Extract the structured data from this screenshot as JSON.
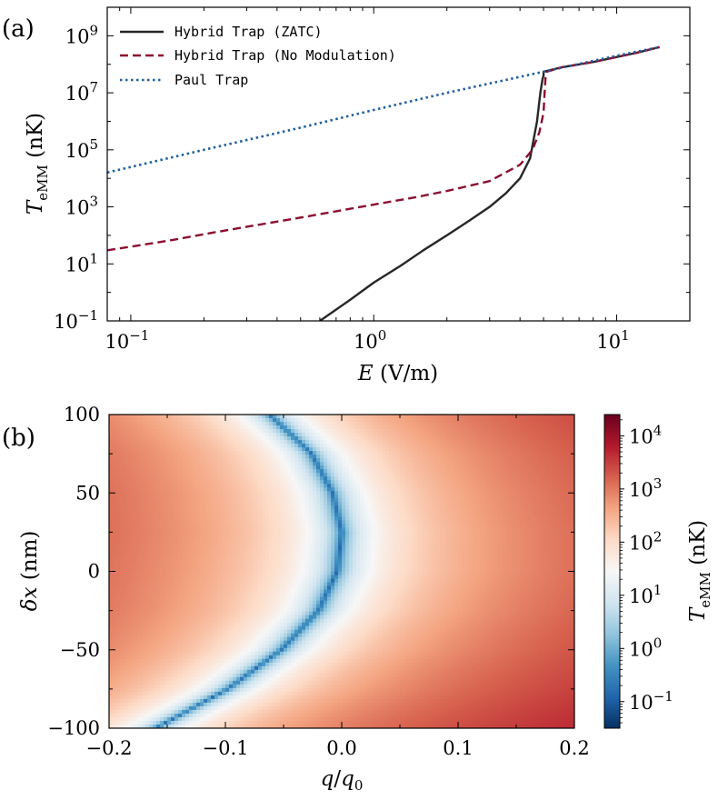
{
  "chart_data": [
    {
      "panel_label": "(a)",
      "type": "line",
      "x_scale": "log",
      "y_scale": "log",
      "xlim": [
        0.08,
        20
      ],
      "ylim": [
        0.1,
        10000000000
      ],
      "xlabel_main": "E",
      "xlabel_unit": " (V/m)",
      "ylabel_main": "T",
      "ylabel_sub": "eMM",
      "ylabel_unit": " (nK)",
      "x_ticks": [
        {
          "value": 0.1,
          "base": "10",
          "exp": "−1"
        },
        {
          "value": 1,
          "base": "10",
          "exp": "0"
        },
        {
          "value": 10,
          "base": "10",
          "exp": "1"
        }
      ],
      "y_ticks": [
        {
          "value": 0.1,
          "base": "10",
          "exp": "−1"
        },
        {
          "value": 10,
          "base": "10",
          "exp": "1"
        },
        {
          "value": 1000,
          "base": "10",
          "exp": "3"
        },
        {
          "value": 100000,
          "base": "10",
          "exp": "5"
        },
        {
          "value": 10000000,
          "base": "10",
          "exp": "7"
        },
        {
          "value": 1000000000,
          "base": "10",
          "exp": "9"
        }
      ],
      "legend_position": "top-left",
      "series": [
        {
          "name": "Hybrid Trap (ZATC)",
          "color": "#262626",
          "style": "solid",
          "x": [
            0.6,
            0.8,
            1.0,
            1.3,
            1.6,
            2.0,
            2.5,
            3.0,
            3.5,
            4.0,
            4.4,
            4.7,
            4.85,
            4.95,
            5.0,
            5.0,
            6.0,
            8.0,
            10.0,
            12.0,
            15.0
          ],
          "y": [
            0.1,
            0.55,
            2.2,
            9,
            30,
            100,
            350,
            1000,
            3000,
            10000,
            50000,
            1000000,
            10000000,
            30000000,
            40000000,
            55000000,
            80000000,
            120000000,
            180000000,
            250000000,
            400000000
          ]
        },
        {
          "name": "Hybrid Trap (No Modulation)",
          "color": "#8b0f2f",
          "style": "dashed",
          "x": [
            0.08,
            0.1,
            0.15,
            0.2,
            0.3,
            0.5,
            0.7,
            1.0,
            1.5,
            2.0,
            3.0,
            4.0,
            4.5,
            4.8,
            5.0,
            5.05,
            5.1,
            5.15,
            6.0,
            8.0,
            10.0,
            12.0,
            15.0
          ],
          "y": [
            30,
            40,
            70,
            110,
            200,
            420,
            700,
            1200,
            2200,
            3600,
            8000,
            30000,
            100000,
            400000,
            2000000,
            10000000,
            40000000,
            55000000,
            80000000,
            120000000,
            180000000,
            250000000,
            400000000
          ]
        },
        {
          "name": "Paul Trap",
          "color": "#1f5f9e",
          "style": "dotted",
          "x": [
            0.08,
            0.1,
            0.2,
            0.5,
            1.0,
            2.0,
            5.0,
            10.0,
            15.0
          ],
          "y": [
            16000,
            25000,
            100000,
            600000,
            2500000,
            10000000,
            55000000,
            200000000,
            400000000
          ]
        }
      ]
    },
    {
      "panel_label": "(b)",
      "type": "heatmap",
      "xlim": [
        -0.2,
        0.2
      ],
      "ylim": [
        -100,
        100
      ],
      "xlabel_main": "q",
      "xlabel_over": "/",
      "xlabel_main2": "q",
      "xlabel_sub": "0",
      "ylabel_main": "δx",
      "ylabel_unit": " (nm)",
      "x_ticks": [
        {
          "value": -0.2,
          "label": "−0.2"
        },
        {
          "value": -0.1,
          "label": "−0.1"
        },
        {
          "value": 0.0,
          "label": "0.0"
        },
        {
          "value": 0.1,
          "label": "0.1"
        },
        {
          "value": 0.2,
          "label": "0.2"
        }
      ],
      "y_ticks": [
        {
          "value": 100,
          "label": "100"
        },
        {
          "value": 50,
          "label": "50"
        },
        {
          "value": 0,
          "label": "0"
        },
        {
          "value": -50,
          "label": "−50"
        },
        {
          "value": -100,
          "label": "−100"
        }
      ],
      "valley_curve": {
        "description_of_shape": "minimum of T_eMM along q0(δx)",
        "dx": [
          100,
          75,
          50,
          25,
          0,
          -25,
          -50,
          -75,
          -100
        ],
        "q_min": [
          -0.062,
          -0.026,
          -0.008,
          0.0,
          -0.004,
          -0.02,
          -0.052,
          -0.098,
          -0.16
        ]
      },
      "colorscale": [
        "#053061",
        "#2166ac",
        "#4393c3",
        "#92c5de",
        "#d1e5f0",
        "#f7f7f7",
        "#fddbc7",
        "#f4a582",
        "#d6604d",
        "#b2182b",
        "#67001f"
      ],
      "colorbar": {
        "label_main": "T",
        "label_sub": "eMM",
        "label_unit": " (nK)",
        "range_log10": [
          -1.5,
          4.4
        ],
        "ticks": [
          {
            "value": 0.1,
            "base": "10",
            "exp": "−1"
          },
          {
            "value": 1,
            "base": "10",
            "exp": "0"
          },
          {
            "value": 10,
            "base": "10",
            "exp": "1"
          },
          {
            "value": 100,
            "base": "10",
            "exp": "2"
          },
          {
            "value": 1000,
            "base": "10",
            "exp": "3"
          },
          {
            "value": 10000,
            "base": "10",
            "exp": "4"
          }
        ]
      }
    }
  ]
}
